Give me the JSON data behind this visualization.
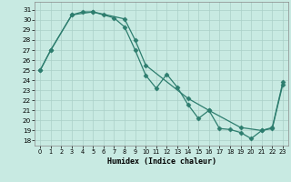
{
  "xlabel": "Humidex (Indice chaleur)",
  "line1_x": [
    0,
    1,
    3,
    4,
    5,
    6,
    7,
    8,
    9,
    10,
    11,
    12,
    13,
    14,
    15,
    16,
    17,
    18,
    19,
    20,
    21,
    22,
    23
  ],
  "line1_y": [
    25.0,
    27.0,
    30.5,
    30.8,
    30.8,
    30.5,
    30.2,
    29.3,
    27.0,
    24.5,
    23.2,
    24.6,
    23.3,
    21.6,
    20.2,
    21.0,
    19.2,
    19.1,
    18.8,
    18.2,
    19.0,
    19.3,
    23.8
  ],
  "line2_x": [
    0,
    1,
    3,
    5,
    8,
    9,
    10,
    14,
    16,
    19,
    21,
    22,
    23
  ],
  "line2_y": [
    25.0,
    27.0,
    30.5,
    30.8,
    30.1,
    28.0,
    25.5,
    22.2,
    21.0,
    19.3,
    19.0,
    19.2,
    23.6
  ],
  "color": "#2d7d6e",
  "bg_color": "#c8eae2",
  "grid_color": "#aad0c8",
  "ylim": [
    17.5,
    31.8
  ],
  "xlim": [
    -0.5,
    23.5
  ],
  "yticks": [
    18,
    19,
    20,
    21,
    22,
    23,
    24,
    25,
    26,
    27,
    28,
    29,
    30,
    31
  ],
  "xticks": [
    0,
    1,
    2,
    3,
    4,
    5,
    6,
    7,
    8,
    9,
    10,
    11,
    12,
    13,
    14,
    15,
    16,
    17,
    18,
    19,
    20,
    21,
    22,
    23
  ]
}
